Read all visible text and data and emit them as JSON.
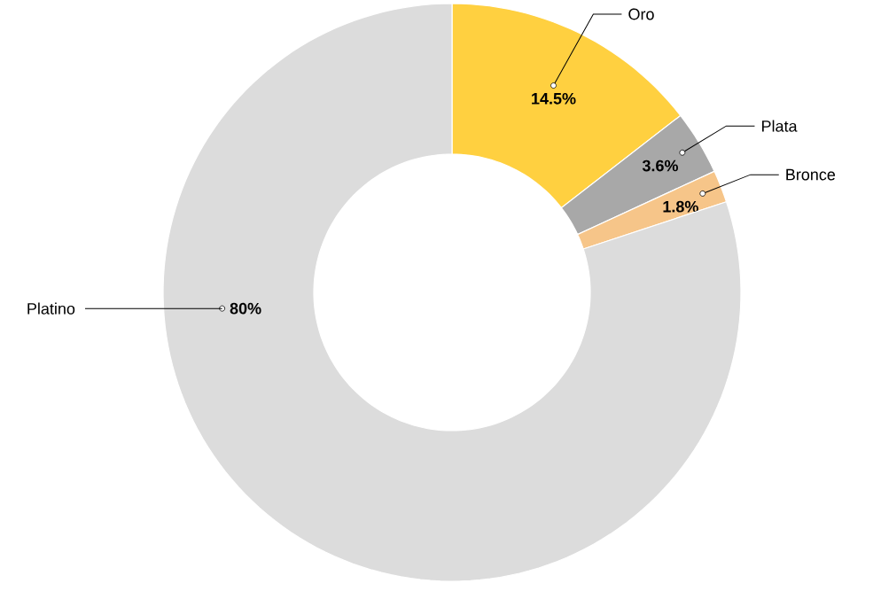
{
  "chart_data": {
    "type": "donut",
    "categories": [
      "Oro",
      "Plata",
      "Bronce",
      "Platino"
    ],
    "values": [
      14.5,
      3.6,
      1.8,
      80
    ],
    "value_labels": [
      "14.5%",
      "3.6%",
      "1.8%",
      "80%"
    ],
    "colors": [
      "#ffd040",
      "#a8a8a8",
      "#f6c589",
      "#dcdcdc"
    ]
  }
}
